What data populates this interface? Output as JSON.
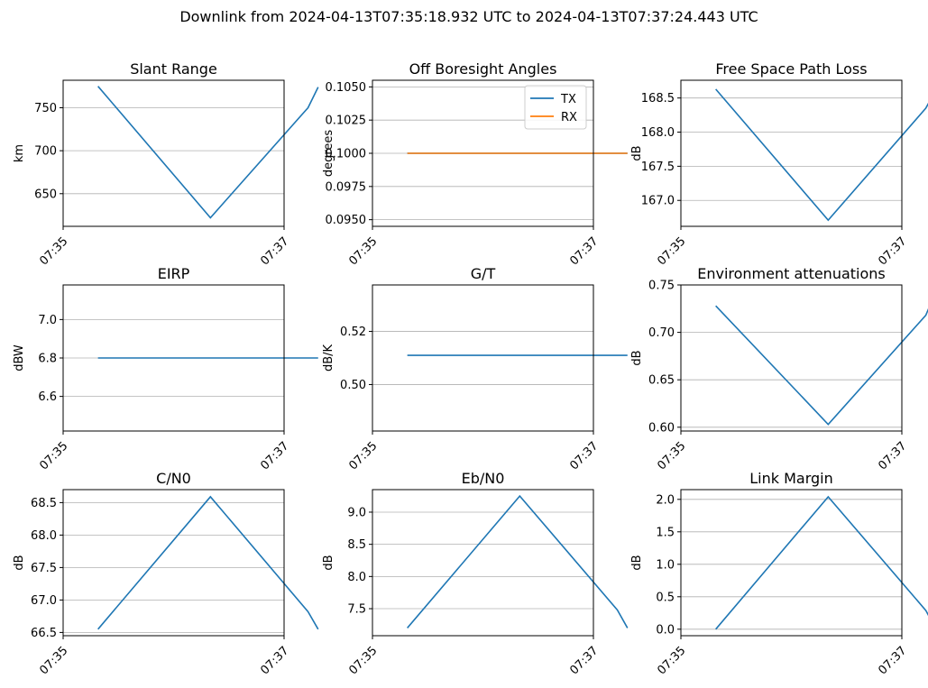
{
  "suptitle": "Downlink from 2024-04-13T07:35:18.932 UTC to 2024-04-13T07:37:24.443 UTC",
  "colors": {
    "series_blue": "#1f77b4",
    "series_orange": "#ff7f0e",
    "grid": "#b0b0b0",
    "axis": "#000000"
  },
  "chart_data": [
    {
      "type": "line",
      "title": "Slant Range",
      "ylabel": "km",
      "grid": "y",
      "x": [
        "07:35:18.932",
        "07:36:20",
        "07:37:13",
        "07:37:18.5"
      ],
      "xlim": [
        "07:35",
        "07:37"
      ],
      "xticks": [
        "07:35",
        "07:37"
      ],
      "ylim": [
        612,
        782
      ],
      "yticks": [
        650,
        700,
        750
      ],
      "yticklabels": [
        "650",
        "700",
        "750"
      ],
      "series": [
        {
          "color": "#1f77b4",
          "values": [
            775,
            622,
            750,
            774
          ]
        }
      ]
    },
    {
      "type": "line",
      "title": "Off Boresight Angles",
      "ylabel": "degrees",
      "grid": "y",
      "legend": "top-right",
      "x": [
        "07:35:18.932",
        "07:37:18.5"
      ],
      "xlim": [
        "07:35",
        "07:37"
      ],
      "xticks": [
        "07:35",
        "07:37"
      ],
      "ylim": [
        0.0945,
        0.1055
      ],
      "yticks": [
        0.095,
        0.0975,
        0.1,
        0.1025,
        0.105
      ],
      "yticklabels": [
        "0.0950",
        "0.0975",
        "0.1000",
        "0.1025",
        "0.1050"
      ],
      "series": [
        {
          "name": "TX",
          "color": "#1f77b4",
          "values": [
            0.1,
            0.1
          ]
        },
        {
          "name": "RX",
          "color": "#ff7f0e",
          "values": [
            0.1,
            0.1
          ]
        }
      ]
    },
    {
      "type": "line",
      "title": "Free Space Path Loss",
      "ylabel": "dB",
      "grid": "y",
      "x": [
        "07:35:18.932",
        "07:36:20",
        "07:37:13",
        "07:37:18.5"
      ],
      "xlim": [
        "07:35",
        "07:37"
      ],
      "xticks": [
        "07:35",
        "07:37"
      ],
      "ylim": [
        166.62,
        168.76
      ],
      "yticks": [
        167.0,
        167.5,
        168.0,
        168.5
      ],
      "yticklabels": [
        "167.0",
        "167.5",
        "168.0",
        "168.5"
      ],
      "series": [
        {
          "color": "#1f77b4",
          "values": [
            168.63,
            166.71,
            168.35,
            168.62
          ]
        }
      ]
    },
    {
      "type": "line",
      "title": "EIRP",
      "ylabel": "dBW",
      "grid": "y",
      "x": [
        "07:35:18.932",
        "07:37:18.5"
      ],
      "xlim": [
        "07:35",
        "07:37"
      ],
      "xticks": [
        "07:35",
        "07:37"
      ],
      "ylim": [
        6.42,
        7.18
      ],
      "yticks": [
        6.6,
        6.8,
        7.0
      ],
      "yticklabels": [
        "6.6",
        "6.8",
        "7.0"
      ],
      "series": [
        {
          "color": "#1f77b4",
          "values": [
            6.8,
            6.8
          ]
        }
      ]
    },
    {
      "type": "line",
      "title": "G/T",
      "ylabel": "dB/K",
      "grid": "y",
      "x": [
        "07:35:18.932",
        "07:37:18.5"
      ],
      "xlim": [
        "07:35",
        "07:37"
      ],
      "xticks": [
        "07:35",
        "07:37"
      ],
      "ylim": [
        0.4825,
        0.5375
      ],
      "yticks": [
        0.5,
        0.52
      ],
      "yticklabels": [
        "0.50",
        "0.52"
      ],
      "series": [
        {
          "color": "#1f77b4",
          "values": [
            0.511,
            0.511
          ]
        }
      ]
    },
    {
      "type": "line",
      "title": "Environment attenuations",
      "ylabel": "dB",
      "grid": "y",
      "x": [
        "07:35:18.932",
        "07:36:20",
        "07:37:13",
        "07:37:18.5"
      ],
      "xlim": [
        "07:35",
        "07:37"
      ],
      "xticks": [
        "07:35",
        "07:37"
      ],
      "ylim": [
        0.596,
        0.75
      ],
      "yticks": [
        0.6,
        0.65,
        0.7,
        0.75
      ],
      "yticklabels": [
        "0.60",
        "0.65",
        "0.70",
        "0.75"
      ],
      "series": [
        {
          "color": "#1f77b4",
          "values": [
            0.728,
            0.603,
            0.718,
            0.743
          ]
        }
      ]
    },
    {
      "type": "line",
      "title": "C/N0",
      "ylabel": "dB",
      "grid": "y",
      "x": [
        "07:35:18.932",
        "07:36:20",
        "07:37:13",
        "07:37:18.5"
      ],
      "xlim": [
        "07:35",
        "07:37"
      ],
      "xticks": [
        "07:35",
        "07:37"
      ],
      "ylim": [
        66.45,
        68.7
      ],
      "yticks": [
        66.5,
        67.0,
        67.5,
        68.0,
        68.5
      ],
      "yticklabels": [
        "66.5",
        "67.0",
        "67.5",
        "68.0",
        "68.5"
      ],
      "series": [
        {
          "color": "#1f77b4",
          "values": [
            66.55,
            68.59,
            66.82,
            66.55
          ]
        }
      ]
    },
    {
      "type": "line",
      "title": "Eb/N0",
      "ylabel": "dB",
      "grid": "y",
      "x": [
        "07:35:18.932",
        "07:36:20",
        "07:37:13",
        "07:37:18.5"
      ],
      "xlim": [
        "07:35",
        "07:37"
      ],
      "xticks": [
        "07:35",
        "07:37"
      ],
      "ylim": [
        7.08,
        9.35
      ],
      "yticks": [
        7.5,
        8.0,
        8.5,
        9.0
      ],
      "yticklabels": [
        "7.5",
        "8.0",
        "8.5",
        "9.0"
      ],
      "series": [
        {
          "color": "#1f77b4",
          "values": [
            7.2,
            9.25,
            7.48,
            7.2
          ]
        }
      ]
    },
    {
      "type": "line",
      "title": "Link Margin",
      "ylabel": "dB",
      "grid": "y",
      "x": [
        "07:35:18.932",
        "07:36:20",
        "07:37:13",
        "07:37:18.5"
      ],
      "xlim": [
        "07:35",
        "07:37"
      ],
      "xticks": [
        "07:35",
        "07:37"
      ],
      "ylim": [
        -0.1,
        2.15
      ],
      "yticks": [
        0.0,
        0.5,
        1.0,
        1.5,
        2.0
      ],
      "yticklabels": [
        "0.0",
        "0.5",
        "1.0",
        "1.5",
        "2.0"
      ],
      "series": [
        {
          "color": "#1f77b4",
          "values": [
            0.0,
            2.04,
            0.29,
            0.0
          ]
        }
      ]
    }
  ]
}
